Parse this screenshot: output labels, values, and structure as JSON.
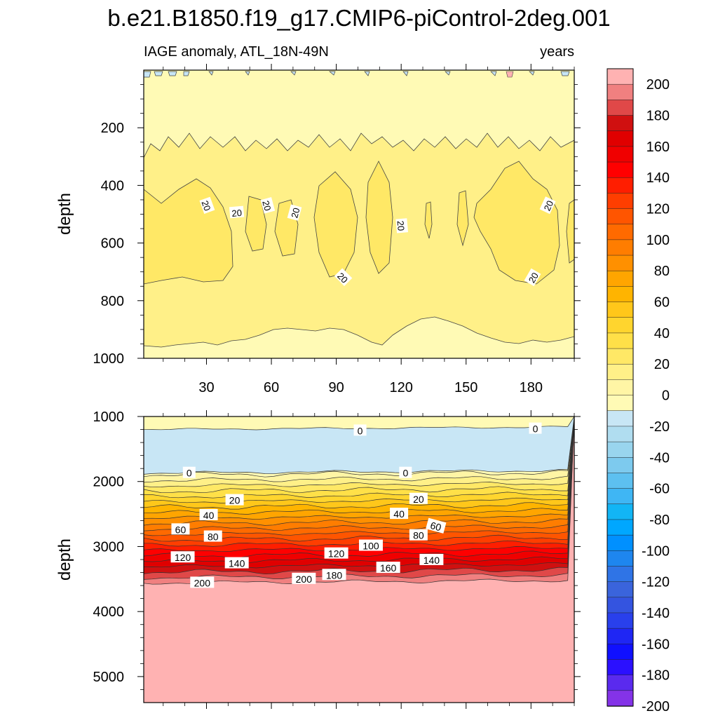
{
  "chart_data": [
    {
      "type": "contour",
      "title": "b.e21.B1850.f19_g17.CMIP6-piControl-2deg.001",
      "left_string": "IAGE anomaly, ATL_18N-49N",
      "right_string": "years",
      "ylabel": "depth",
      "ylim": [
        0,
        1000
      ],
      "y_reversed": true,
      "y_ticks": [
        "200",
        "400",
        "600",
        "800",
        "1000"
      ],
      "x_range": [
        1,
        200
      ],
      "x_ticks": [
        "30",
        "60",
        "90",
        "120",
        "150",
        "180"
      ],
      "contour_labels": [
        "20",
        "20",
        "20",
        "20",
        "20",
        "20",
        "20",
        "20"
      ],
      "levels": {
        "negative_band_near_surface": -20,
        "band_0_20_upper_boundary_depth": 250,
        "band_0_20_lower_boundary_depth": 940,
        "maxima_20_40_depth_range": [
          400,
          720
        ]
      }
    },
    {
      "type": "contour",
      "ylabel": "depth",
      "ylim": [
        1000,
        5400
      ],
      "y_reversed": true,
      "y_ticks": [
        "1000",
        "2000",
        "3000",
        "4000",
        "5000"
      ],
      "x_range": [
        1,
        200
      ],
      "contour_labels": [
        "0",
        "0",
        "0",
        "0",
        "20",
        "20",
        "40",
        "40",
        "60",
        "60",
        "80",
        "80",
        "100",
        "120",
        "120",
        "140",
        "140",
        "160",
        "180",
        "200",
        "200"
      ],
      "levels_depth": [
        {
          "level": 0,
          "depth": 1870
        },
        {
          "level": 20,
          "depth": 2130
        },
        {
          "level": 40,
          "depth": 2430
        },
        {
          "level": 60,
          "depth": 2650
        },
        {
          "level": 80,
          "depth": 2850
        },
        {
          "level": 100,
          "depth": 2980
        },
        {
          "level": 120,
          "depth": 3110
        },
        {
          "level": 140,
          "depth": 3240
        },
        {
          "level": 160,
          "depth": 3330
        },
        {
          "level": 180,
          "depth": 3420
        },
        {
          "level": 200,
          "depth": 3530
        }
      ],
      "negative_layer_depth_range": [
        1200,
        1870
      ]
    }
  ],
  "colorbar": {
    "labels": [
      "200",
      "180",
      "160",
      "140",
      "120",
      "100",
      "80",
      "60",
      "40",
      "20",
      "0",
      "-20",
      "-40",
      "-60",
      "-80",
      "-100",
      "-120",
      "-140",
      "-160",
      "-180",
      "-200"
    ],
    "colors": [
      "#ffb2b2",
      "#f08080",
      "#e04848",
      "#d01010",
      "#e00000",
      "#f00000",
      "#ff0000",
      "#ff1e00",
      "#ff3e00",
      "#ff5500",
      "#ff6a00",
      "#ff7d00",
      "#ff9000",
      "#ffa500",
      "#ffb400",
      "#ffc71a",
      "#ffd52e",
      "#ffe048",
      "#ffe866",
      "#fff088",
      "#fff5a5",
      "#fffab5",
      "#c8e6f5",
      "#b0ddf0",
      "#99d5ee",
      "#7dcaee",
      "#5dc0f0",
      "#3fb6f4",
      "#12b5f5",
      "#00a7ff",
      "#0090ff",
      "#1e86ef",
      "#2f74e6",
      "#3a64dc",
      "#3454e0",
      "#2940ec",
      "#1f26f4",
      "#1010ff",
      "#2b10ff",
      "#5a2aee",
      "#8433e8"
    ]
  }
}
